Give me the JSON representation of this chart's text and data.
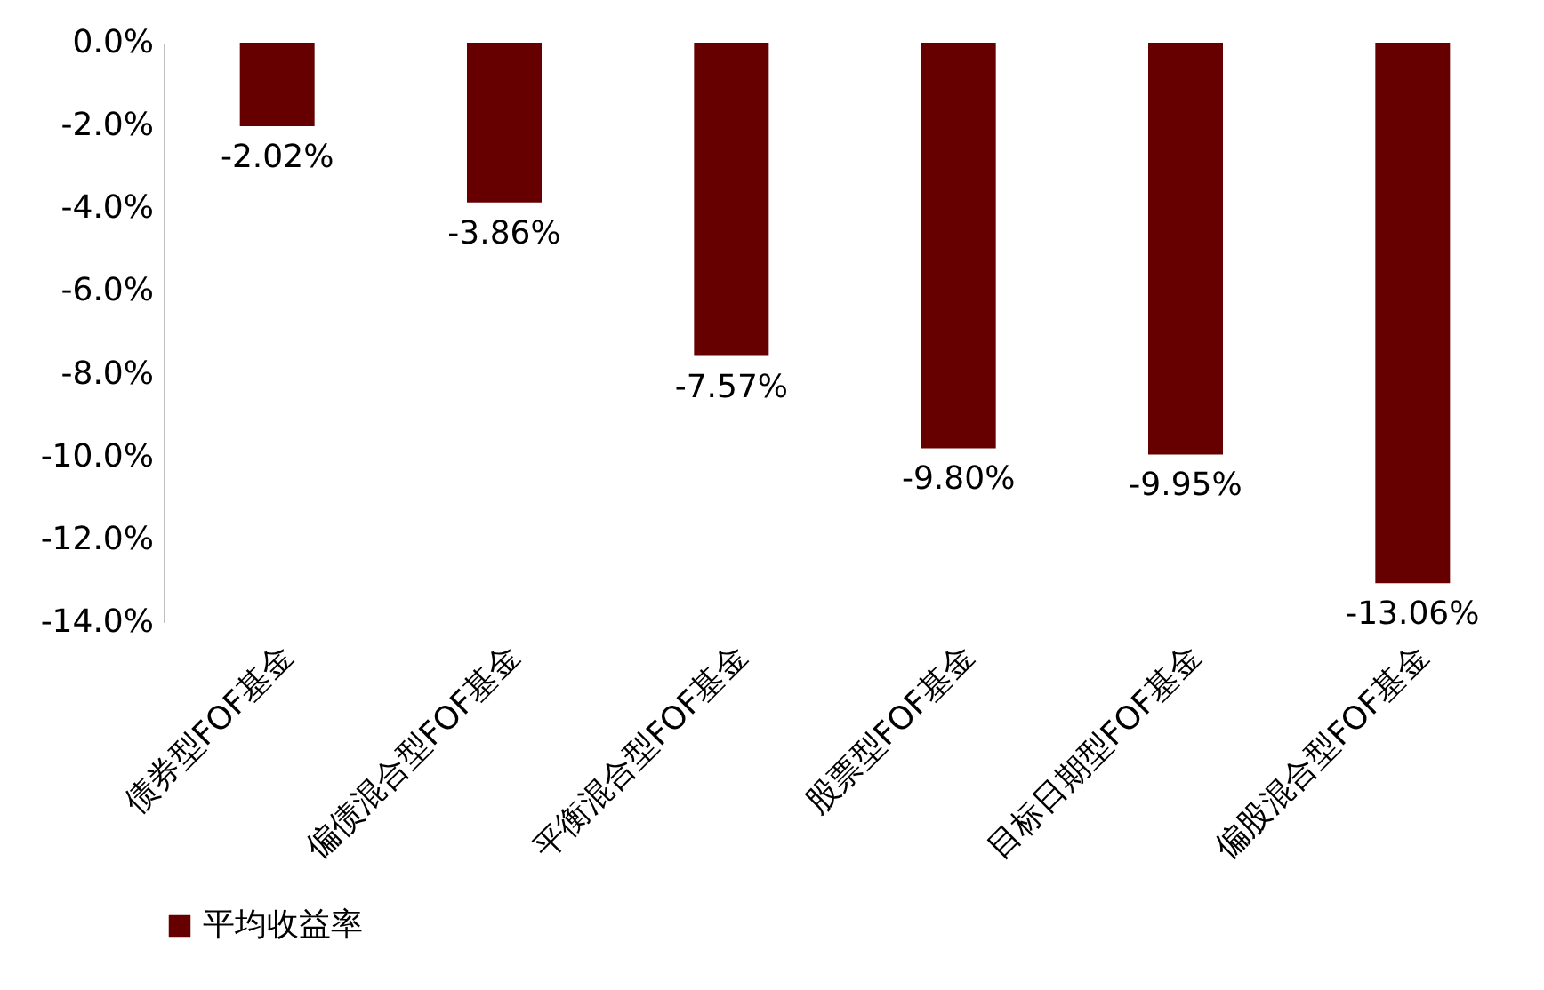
{
  "chart_data": {
    "type": "bar",
    "categories": [
      "债券型FOF基金",
      "偏债混合型FOF基金",
      "平衡混合型FOF基金",
      "股票型FOF基金",
      "目标日期型FOF基金",
      "偏股混合型FOF基金"
    ],
    "series": [
      {
        "name": "平均收益率",
        "color": "#660000",
        "values": [
          -2.02,
          -3.86,
          -7.57,
          -9.8,
          -9.95,
          -13.06
        ],
        "value_labels": [
          "-2.02%",
          "-3.86%",
          "-7.57%",
          "-9.80%",
          "-9.95%",
          "-13.06%"
        ]
      }
    ],
    "ylim": [
      -14,
      0
    ],
    "yticks": [
      {
        "value": 0,
        "label": "0.0%"
      },
      {
        "value": -2,
        "label": "-2.0%"
      },
      {
        "value": -4,
        "label": "-4.0%"
      },
      {
        "value": -6,
        "label": "-6.0%"
      },
      {
        "value": -8,
        "label": "-8.0%"
      },
      {
        "value": -10,
        "label": "-10.0%"
      },
      {
        "value": -12,
        "label": "-12.0%"
      },
      {
        "value": -14,
        "label": "-14.0%"
      }
    ],
    "legend": "bottom",
    "grid": false
  }
}
